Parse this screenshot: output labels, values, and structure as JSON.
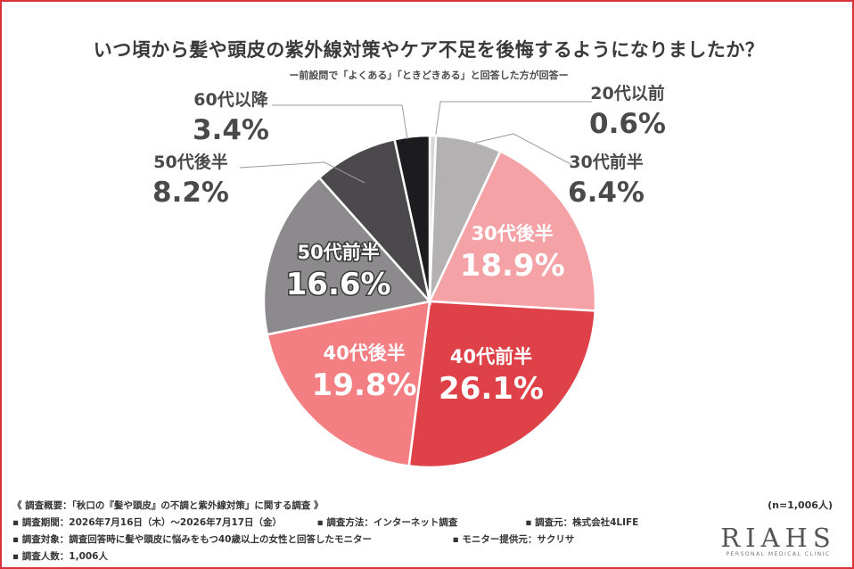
{
  "chart_data": {
    "type": "pie",
    "title": "いつ頃から髪や頭皮の紫外線対策やケア不足を後悔するようになりましたか？",
    "subtitle": "ー前設問で「よくある」「ときどきある」と回答した方が回答ー",
    "unit": "%",
    "sample_size": "(n=1,006人)",
    "slices": [
      {
        "label": "20代以前",
        "value": 0.6,
        "display": "0.6%",
        "color": "#d6d6d6",
        "label_position": "outside"
      },
      {
        "label": "30代前半",
        "value": 6.4,
        "display": "6.4%",
        "color": "#b3b1b2",
        "label_position": "outside"
      },
      {
        "label": "30代後半",
        "value": 18.9,
        "display": "18.9%",
        "color": "#f4a2a5",
        "label_position": "inside"
      },
      {
        "label": "40代前半",
        "value": 26.1,
        "display": "26.1%",
        "color": "#de4147",
        "label_position": "inside"
      },
      {
        "label": "40代後半",
        "value": 19.8,
        "display": "19.8%",
        "color": "#f37f82",
        "label_position": "inside"
      },
      {
        "label": "50代前半",
        "value": 16.6,
        "display": "16.6%",
        "color": "#8c8a8d",
        "label_position": "inside"
      },
      {
        "label": "50代後半",
        "value": 8.2,
        "display": "8.2%",
        "color": "#4b494c",
        "label_position": "outside"
      },
      {
        "label": "60代以降",
        "value": 3.4,
        "display": "3.4%",
        "color": "#1c1b1d",
        "label_position": "outside"
      }
    ]
  },
  "footer": {
    "heading": "《 調査概要：「秋口の『髪や頭皮』の不調と紫外線対策」に関する調査 》",
    "period": "▪ 調査期間：2026年7月16日（木）〜2026年7月17日（金）",
    "method": "▪ 調査方法：インターネット調査",
    "organizer": "▪ 調査元：株式会社4LIFE",
    "target": "▪ 調査対象：調査回答時に髪や頭皮に悩みをもつ40歳以上の女性と回答したモニター",
    "provider": "▪ モニター提供元：サクリサ",
    "count": "▪ 調査人数：1,006人"
  },
  "logo": {
    "text": "RIAHS",
    "tagline": "PERSONAL MEDICAL CLINIC"
  }
}
